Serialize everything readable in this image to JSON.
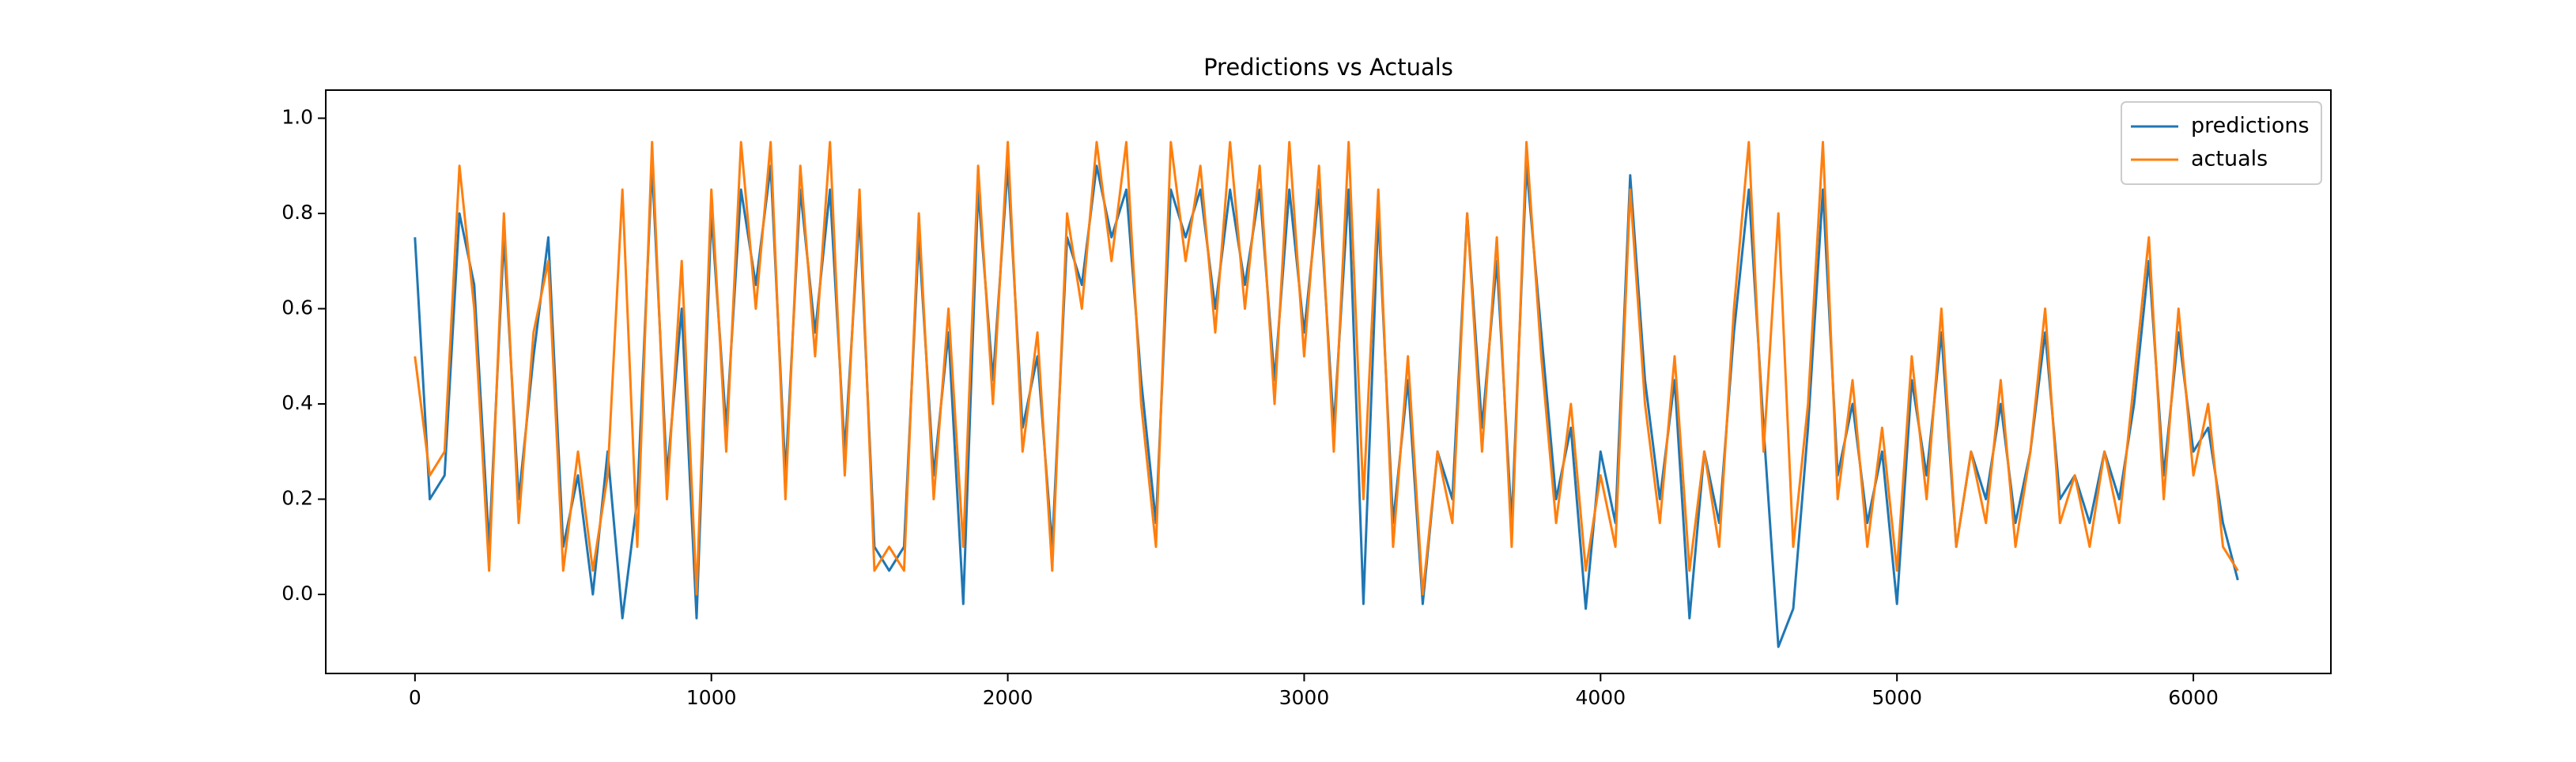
{
  "chart_data": {
    "type": "line",
    "title": "Predictions vs Actuals",
    "x": [
      0,
      50,
      100,
      150,
      200,
      250,
      300,
      350,
      400,
      450,
      500,
      550,
      600,
      650,
      700,
      750,
      800,
      850,
      900,
      950,
      1000,
      1050,
      1100,
      1150,
      1200,
      1250,
      1300,
      1350,
      1400,
      1450,
      1500,
      1550,
      1600,
      1650,
      1700,
      1750,
      1800,
      1850,
      1900,
      1950,
      2000,
      2050,
      2100,
      2150,
      2200,
      2250,
      2300,
      2350,
      2400,
      2450,
      2500,
      2550,
      2600,
      2650,
      2700,
      2750,
      2800,
      2850,
      2900,
      2950,
      3000,
      3050,
      3100,
      3150,
      3200,
      3250,
      3300,
      3350,
      3400,
      3450,
      3500,
      3550,
      3600,
      3650,
      3700,
      3750,
      3800,
      3850,
      3900,
      3950,
      4000,
      4050,
      4100,
      4150,
      4200,
      4250,
      4300,
      4350,
      4400,
      4450,
      4500,
      4550,
      4600,
      4650,
      4700,
      4750,
      4800,
      4850,
      4900,
      4950,
      5000,
      5050,
      5100,
      5150,
      5200,
      5250,
      5300,
      5350,
      5400,
      5450,
      5500,
      5550,
      5600,
      5650,
      5700,
      5750,
      5800,
      5850,
      5900,
      5950,
      6000,
      6050,
      6100,
      6150
    ],
    "series": [
      {
        "name": "predictions",
        "color": "#1f77b4",
        "values": [
          0.75,
          0.2,
          0.25,
          0.8,
          0.65,
          0.1,
          0.75,
          0.2,
          0.5,
          0.75,
          0.1,
          0.25,
          0.0,
          0.3,
          -0.05,
          0.2,
          0.9,
          0.25,
          0.6,
          -0.05,
          0.8,
          0.35,
          0.85,
          0.65,
          0.9,
          0.25,
          0.85,
          0.55,
          0.85,
          0.3,
          0.8,
          0.1,
          0.05,
          0.1,
          0.75,
          0.25,
          0.55,
          -0.02,
          0.85,
          0.45,
          0.9,
          0.35,
          0.5,
          0.1,
          0.75,
          0.65,
          0.9,
          0.75,
          0.85,
          0.45,
          0.15,
          0.85,
          0.75,
          0.85,
          0.6,
          0.85,
          0.65,
          0.85,
          0.45,
          0.85,
          0.55,
          0.85,
          0.35,
          0.85,
          -0.02,
          0.8,
          0.15,
          0.45,
          -0.02,
          0.3,
          0.2,
          0.8,
          0.35,
          0.7,
          0.15,
          0.9,
          0.55,
          0.2,
          0.35,
          -0.03,
          0.3,
          0.15,
          0.88,
          0.45,
          0.2,
          0.45,
          -0.05,
          0.3,
          0.15,
          0.55,
          0.85,
          0.35,
          -0.11,
          -0.03,
          0.35,
          0.85,
          0.25,
          0.4,
          0.15,
          0.3,
          -0.02,
          0.45,
          0.25,
          0.55,
          0.1,
          0.3,
          0.2,
          0.4,
          0.15,
          0.3,
          0.55,
          0.2,
          0.25,
          0.15,
          0.3,
          0.2,
          0.4,
          0.7,
          0.25,
          0.55,
          0.3,
          0.35,
          0.15,
          0.03
        ]
      },
      {
        "name": "actuals",
        "color": "#ff7f0e",
        "values": [
          0.5,
          0.25,
          0.3,
          0.9,
          0.6,
          0.05,
          0.8,
          0.15,
          0.55,
          0.7,
          0.05,
          0.3,
          0.05,
          0.25,
          0.85,
          0.1,
          0.95,
          0.2,
          0.7,
          0.0,
          0.85,
          0.3,
          0.95,
          0.6,
          0.95,
          0.2,
          0.9,
          0.5,
          0.95,
          0.25,
          0.85,
          0.05,
          0.1,
          0.05,
          0.8,
          0.2,
          0.6,
          0.1,
          0.9,
          0.4,
          0.95,
          0.3,
          0.55,
          0.05,
          0.8,
          0.6,
          0.95,
          0.7,
          0.95,
          0.4,
          0.1,
          0.95,
          0.7,
          0.9,
          0.55,
          0.95,
          0.6,
          0.9,
          0.4,
          0.95,
          0.5,
          0.9,
          0.3,
          0.95,
          0.2,
          0.85,
          0.1,
          0.5,
          0.0,
          0.3,
          0.15,
          0.8,
          0.3,
          0.75,
          0.1,
          0.95,
          0.5,
          0.15,
          0.4,
          0.05,
          0.25,
          0.1,
          0.85,
          0.4,
          0.15,
          0.5,
          0.05,
          0.3,
          0.1,
          0.6,
          0.95,
          0.3,
          0.8,
          0.1,
          0.4,
          0.95,
          0.2,
          0.45,
          0.1,
          0.35,
          0.05,
          0.5,
          0.2,
          0.6,
          0.1,
          0.3,
          0.15,
          0.45,
          0.1,
          0.3,
          0.6,
          0.15,
          0.25,
          0.1,
          0.3,
          0.15,
          0.45,
          0.75,
          0.2,
          0.6,
          0.25,
          0.4,
          0.1,
          0.05
        ]
      }
    ],
    "xlim": [
      -301,
      6464
    ],
    "ylim": [
      -0.166,
      1.059
    ],
    "xticks": [
      0,
      1000,
      2000,
      3000,
      4000,
      5000,
      6000
    ],
    "yticks": [
      {
        "value": 0,
        "label": "0.0"
      },
      0.2,
      0.4,
      0.6,
      0.8,
      {
        "value": 1,
        "label": "1.0"
      }
    ],
    "legend": "upper right"
  }
}
